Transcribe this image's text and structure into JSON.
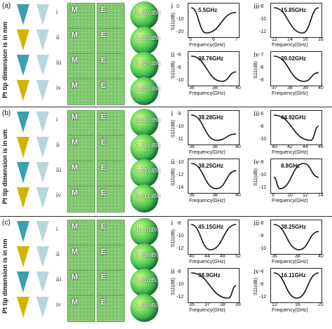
{
  "figure": {
    "panels": [
      {
        "label": "(a)",
        "side_label": "Pt tip dimension is in mm",
        "rows": [
          "i",
          "ii",
          "iii",
          "iv"
        ],
        "field_labels": [
          "M",
          "E"
        ],
        "gains": [
          "8.76 (dBi)",
          "7.66 (dBi)",
          "7.70 (dBi)",
          "4.85 (dBi)"
        ],
        "plots": [
          {
            "roman": "i",
            "title": "5.5GHz",
            "ylabel": "S11(dB)",
            "xlabel": "Frequency(GHz)",
            "yticks": [
              "0",
              "-10",
              "-20"
            ],
            "xticks": [
              "5",
              "6",
              "7"
            ]
          },
          {
            "roman": "iii",
            "title": "15.85GHz",
            "ylabel": "",
            "xlabel": "Frequency(GHz)",
            "yticks": [
              "-8",
              "-10",
              "-12"
            ],
            "xticks": [
              "12",
              "14",
              "16",
              "18"
            ]
          },
          {
            "roman": "ii",
            "title": "38.76GHz",
            "ylabel": "S11(dB)",
            "xlabel": "Frequency(GHz)",
            "yticks": [
              "-6",
              "-8",
              "-10"
            ],
            "xticks": [
              "36",
              "38",
              "40"
            ]
          },
          {
            "roman": "iv",
            "title": "39.02GHz",
            "ylabel": "S11(dB)",
            "xlabel": "Frequency(GHz)",
            "yticks": [
              "-7",
              "-8",
              "-9"
            ],
            "xticks": [
              "37",
              "38",
              "39",
              "40"
            ]
          }
        ]
      },
      {
        "label": "(b)",
        "side_label": "Pt tip dimension is in um",
        "rows": [
          "i",
          "ii",
          "iii",
          "iv"
        ],
        "field_labels": [
          "M",
          "E"
        ],
        "gains": [
          "10.8 (dBi)",
          "7.71 (dBi)",
          "7.53 (dBi)",
          "3.01 (dBi)"
        ],
        "plots": [
          {
            "roman": "i",
            "title": "38.28GHz",
            "ylabel": "S11(dB)",
            "xlabel": "Frequency(GHz)",
            "yticks": [
              "-9",
              "-10",
              "-11"
            ],
            "xticks": [
              "36",
              "38",
              "40"
            ]
          },
          {
            "roman": "iii",
            "title": "44.92GHz",
            "ylabel": "",
            "xlabel": "Frequency(GHz)",
            "yticks": [
              "-6",
              "-8",
              "-10"
            ],
            "xticks": [
              "40",
              "42",
              "44",
              "46"
            ]
          },
          {
            "roman": "ii",
            "title": "38.25GHz",
            "ylabel": "S11(dB)",
            "xlabel": "Frequency(GHz)",
            "yticks": [
              "-10",
              "-12",
              "-14"
            ],
            "xticks": [
              "36",
              "38",
              "40"
            ]
          },
          {
            "roman": "iv",
            "title": "8.8GHz",
            "ylabel": "S11(dB)",
            "xlabel": "Frequency(GHz)",
            "yticks": [
              "-8",
              "-10",
              "-12"
            ],
            "xticks": [
              "8",
              "10",
              "12",
              "14"
            ]
          }
        ]
      },
      {
        "label": "(c)",
        "side_label": "Pt tip dimension is in nm",
        "rows": [
          "i",
          "ii",
          "iii",
          "iv"
        ],
        "field_labels": [
          "M",
          "E"
        ],
        "gains": [
          "10.7(dBi)",
          "7.70(dBi)",
          "7.51(dBi)",
          "1.38(dBi)"
        ],
        "plots": [
          {
            "roman": "i",
            "title": "45.15GHz",
            "ylabel": "S11(dB)",
            "xlabel": "Frequency(GHz)",
            "yticks": [
              "-8",
              "-10",
              "-12"
            ],
            "xticks": [
              "40",
              "44",
              "48",
              "52"
            ]
          },
          {
            "roman": "iii",
            "title": "38.25GHz",
            "ylabel": "",
            "xlabel": "Frequency(GHz)",
            "yticks": [
              "-8",
              "-9",
              "-10"
            ],
            "xticks": [
              "36",
              "38",
              "40"
            ]
          },
          {
            "roman": "ii",
            "title": "38.9GHz",
            "ylabel": "S11(dB)",
            "xlabel": "Frequency(GHz)",
            "yticks": [
              "-8",
              "-10",
              "-12"
            ],
            "xticks": [
              "36",
              "37",
              "38",
              "39"
            ]
          },
          {
            "roman": "iv",
            "title": "16.11GHz",
            "ylabel": "S11(dB)",
            "xlabel": "Frequency(GHz)",
            "yticks": [
              "-4",
              "-8",
              "-12"
            ],
            "xticks": [
              "12",
              "16",
              "20"
            ]
          }
        ]
      }
    ]
  },
  "chart_data": {
    "type": "line",
    "curves": [
      {
        "name": "a-i",
        "x": [
          4.5,
          5.5,
          7.5
        ],
        "y": [
          -2,
          -18,
          -5
        ]
      },
      {
        "name": "a-iii",
        "x": [
          12,
          15.85,
          18
        ],
        "y": [
          -8,
          -12.2,
          -8
        ]
      },
      {
        "name": "a-ii",
        "x": [
          36,
          38.76,
          40
        ],
        "y": [
          -6.5,
          -10.5,
          -9
        ]
      },
      {
        "name": "a-iv",
        "x": [
          37,
          39.02,
          40
        ],
        "y": [
          -7,
          -9,
          -8.3
        ]
      },
      {
        "name": "b-i",
        "x": [
          36,
          38.28,
          40
        ],
        "y": [
          -9,
          -11,
          -10.5
        ]
      },
      {
        "name": "b-iii",
        "x": [
          40,
          44.92,
          46
        ],
        "y": [
          -6,
          -10.5,
          -8
        ]
      },
      {
        "name": "b-ii",
        "x": [
          36,
          38.25,
          40
        ],
        "y": [
          -10,
          -13.5,
          -11
        ]
      },
      {
        "name": "b-iv",
        "x": [
          8,
          8.8,
          12,
          14
        ],
        "y": [
          -10,
          -12.5,
          -7,
          -10
        ]
      },
      {
        "name": "c-i",
        "x": [
          40,
          45.15,
          52
        ],
        "y": [
          -8,
          -12,
          -8
        ]
      },
      {
        "name": "c-iii",
        "x": [
          36,
          38.25,
          40
        ],
        "y": [
          -8,
          -9.8,
          -8.5
        ]
      },
      {
        "name": "c-ii",
        "x": [
          36,
          38.9,
          39.5
        ],
        "y": [
          -8,
          -12,
          -10
        ]
      },
      {
        "name": "c-iv",
        "x": [
          12,
          16.11,
          20
        ],
        "y": [
          -5,
          -12,
          -5
        ]
      }
    ]
  }
}
